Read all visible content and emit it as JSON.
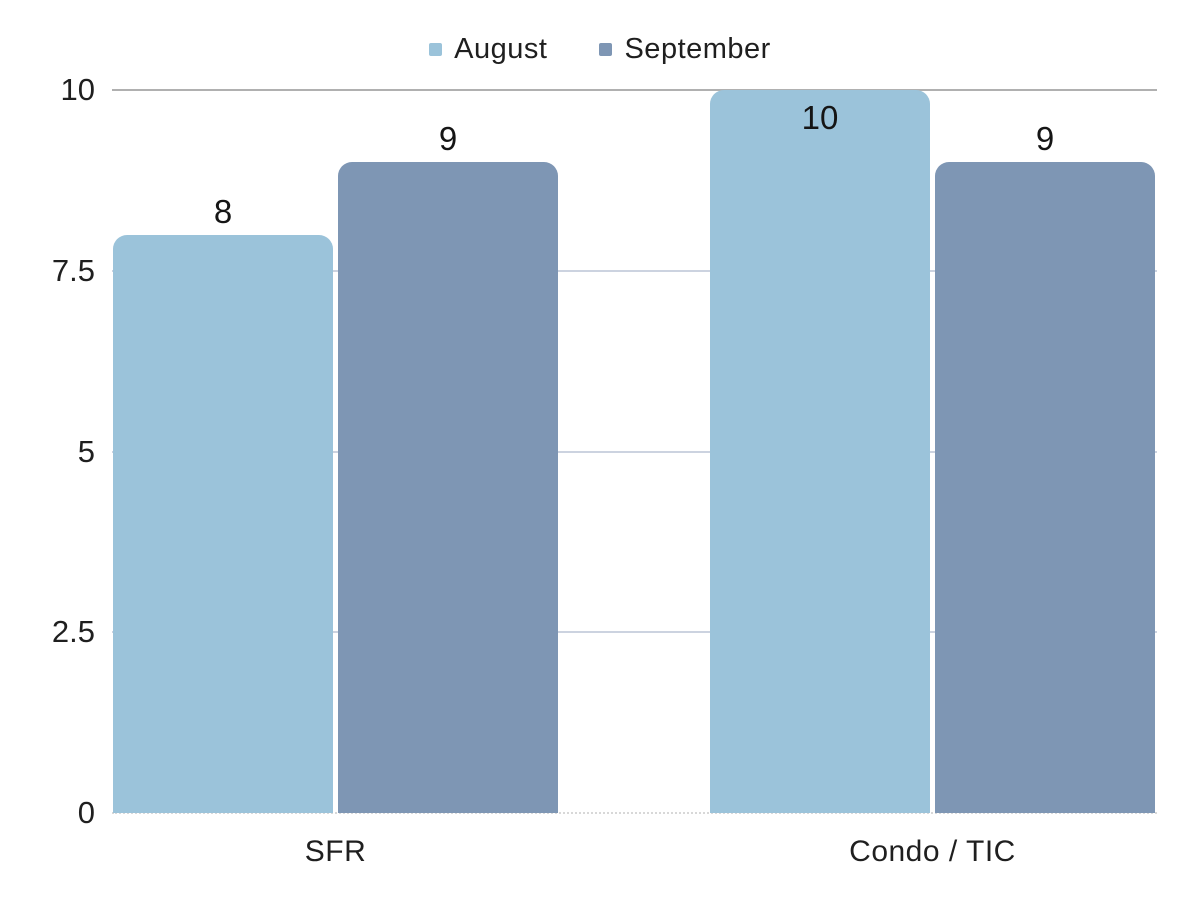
{
  "chart_data": {
    "type": "bar",
    "categories": [
      "SFR",
      "Condo / TIC"
    ],
    "series": [
      {
        "name": "August",
        "color": "#9BC3DA",
        "values": [
          8,
          10
        ]
      },
      {
        "name": "September",
        "color": "#7E96B4",
        "values": [
          9,
          9
        ]
      }
    ],
    "yticks": [
      0,
      2.5,
      5,
      7.5,
      10
    ],
    "ylim": [
      0,
      10
    ],
    "grid": "horizontal",
    "legend_position": "top",
    "value_labels": [
      [
        "8",
        "10"
      ],
      [
        "9",
        "9"
      ]
    ],
    "title": "",
    "xlabel": "",
    "ylabel": ""
  },
  "colors": {
    "august": "#9BC3DA",
    "september": "#7E96B4",
    "gridline_top": "#b0b0b0",
    "gridline_mid": "#ccd3e0",
    "gridline_zero": "#d8d8d8",
    "text": "#1f1f1f",
    "background": "#ffffff"
  }
}
